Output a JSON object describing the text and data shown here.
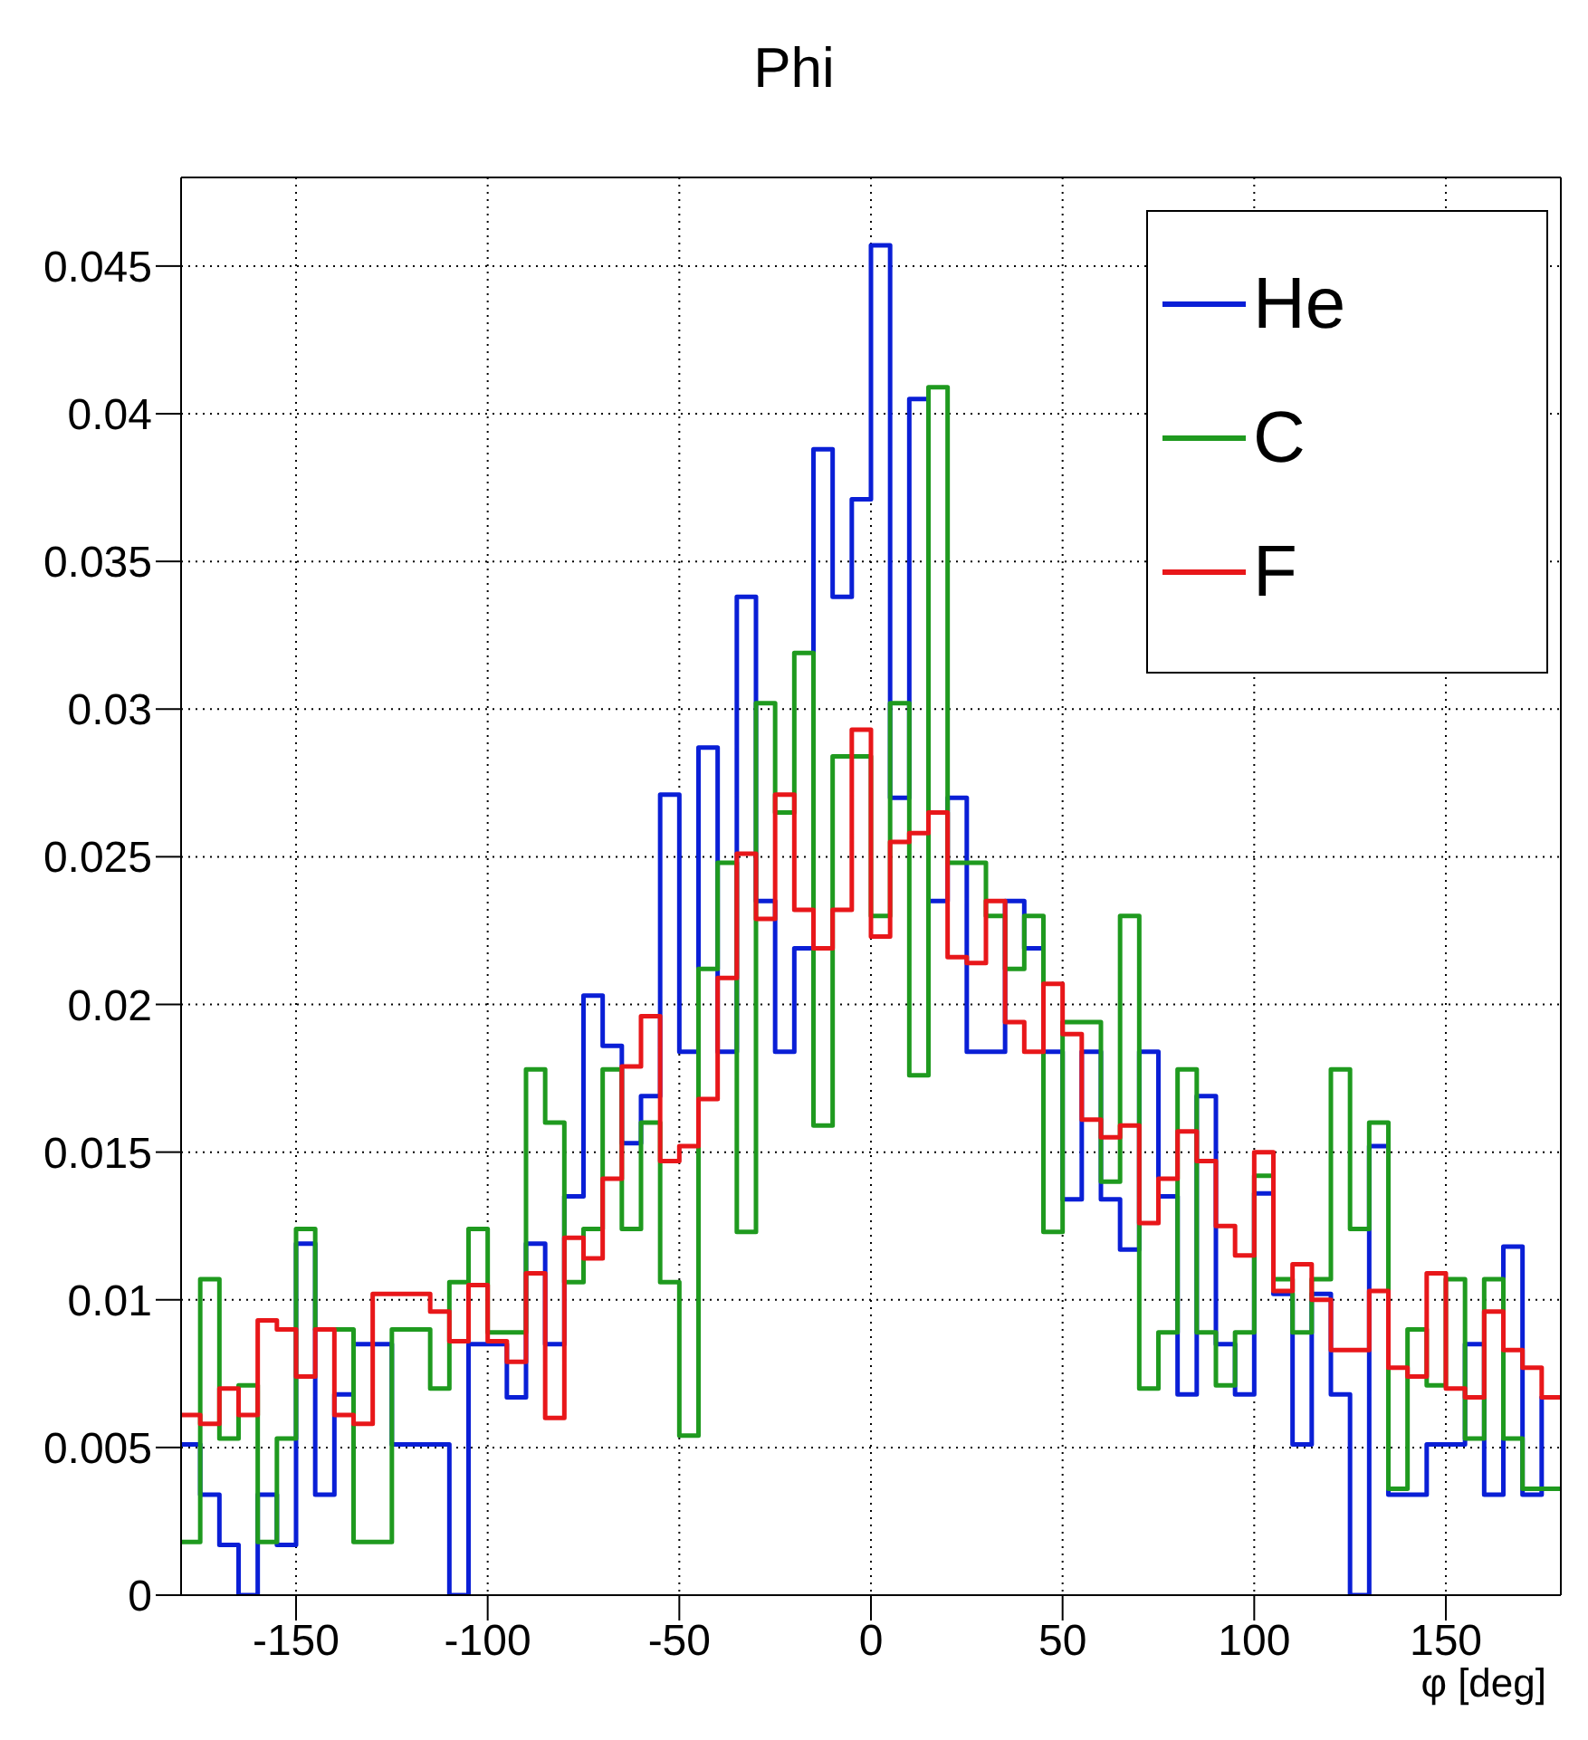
{
  "chart_data": {
    "type": "histogram",
    "title": "Phi",
    "xlabel": "φ [deg]",
    "bins": [
      -180,
      -175,
      -170,
      -165,
      -160,
      -155,
      -150,
      -145,
      -140,
      -135,
      -130,
      -125,
      -120,
      -115,
      -110,
      -105,
      -100,
      -95,
      -90,
      -85,
      -80,
      -75,
      -70,
      -65,
      -60,
      -55,
      -50,
      -45,
      -40,
      -35,
      -30,
      -25,
      -20,
      -15,
      -10,
      -5,
      0,
      5,
      10,
      15,
      20,
      25,
      30,
      35,
      40,
      45,
      50,
      55,
      60,
      65,
      70,
      75,
      80,
      85,
      90,
      95,
      100,
      105,
      110,
      115,
      120,
      125,
      130,
      135,
      140,
      145,
      150,
      155,
      160,
      165,
      170,
      175,
      180
    ],
    "series": [
      {
        "name": "He",
        "color": "#0a1fd6",
        "values": [
          0.0051,
          0.0034,
          0.0017,
          0,
          0.0034,
          0.0017,
          0.0119,
          0.0034,
          0.0068,
          0.0085,
          0.0085,
          0.0051,
          0.0051,
          0.0051,
          0,
          0.0085,
          0.0085,
          0.0067,
          0.0119,
          0.0085,
          0.0135,
          0.0203,
          0.0186,
          0.0153,
          0.0169,
          0.0271,
          0.0184,
          0.0287,
          0.0184,
          0.0338,
          0.0235,
          0.0184,
          0.0219,
          0.0388,
          0.0338,
          0.0371,
          0.0457,
          0.027,
          0.0405,
          0.0235,
          0.027,
          0.0184,
          0.0184,
          0.0235,
          0.0219,
          0.0184,
          0.0134,
          0.0184,
          0.0134,
          0.0117,
          0.0184,
          0.0135,
          0.0068,
          0.0169,
          0.0085,
          0.0068,
          0.0136,
          0.0102,
          0.0051,
          0.0102,
          0.0068,
          0,
          0.0152,
          0.0034,
          0.0034,
          0.0051,
          0.0051,
          0.0085,
          0.0034,
          0.0118,
          0.0034,
          0.0067
        ]
      },
      {
        "name": "C",
        "color": "#1f9a1f",
        "values": [
          0.0018,
          0.0107,
          0.0053,
          0.0071,
          0.0018,
          0.0053,
          0.0124,
          0.009,
          0.009,
          0.0018,
          0.0018,
          0.009,
          0.009,
          0.007,
          0.0106,
          0.0124,
          0.0089,
          0.0089,
          0.0178,
          0.016,
          0.0106,
          0.0124,
          0.0178,
          0.0124,
          0.016,
          0.0106,
          0.0054,
          0.0212,
          0.0248,
          0.0123,
          0.0302,
          0.0265,
          0.0319,
          0.0159,
          0.0284,
          0.0284,
          0.023,
          0.0302,
          0.0176,
          0.0409,
          0.0248,
          0.0248,
          0.023,
          0.0212,
          0.023,
          0.0123,
          0.0194,
          0.0194,
          0.014,
          0.023,
          0.007,
          0.0089,
          0.0178,
          0.0089,
          0.0071,
          0.0089,
          0.0142,
          0.0107,
          0.0089,
          0.0107,
          0.0178,
          0.0124,
          0.016,
          0.0036,
          0.009,
          0.0071,
          0.0107,
          0.0053,
          0.0107,
          0.0053,
          0.0036,
          0.0036
        ]
      },
      {
        "name": "F",
        "color": "#e8171a",
        "values": [
          0.0061,
          0.0058,
          0.007,
          0.0061,
          0.0093,
          0.009,
          0.0074,
          0.009,
          0.0061,
          0.0058,
          0.0102,
          0.0102,
          0.0102,
          0.0096,
          0.0086,
          0.0105,
          0.0086,
          0.0079,
          0.0109,
          0.006,
          0.0121,
          0.0114,
          0.0141,
          0.0179,
          0.0196,
          0.0147,
          0.0152,
          0.0168,
          0.0209,
          0.0251,
          0.0229,
          0.0271,
          0.0232,
          0.0219,
          0.0232,
          0.0293,
          0.0223,
          0.0255,
          0.0258,
          0.0265,
          0.0216,
          0.0214,
          0.0235,
          0.0194,
          0.0184,
          0.0207,
          0.019,
          0.0161,
          0.0155,
          0.0159,
          0.0126,
          0.0141,
          0.0157,
          0.0147,
          0.0125,
          0.0115,
          0.015,
          0.0103,
          0.0112,
          0.01,
          0.0083,
          0.0083,
          0.0103,
          0.0077,
          0.0074,
          0.0109,
          0.007,
          0.0067,
          0.0096,
          0.0083,
          0.0077,
          0.0067
        ]
      }
    ],
    "xlim": [
      -180,
      180
    ],
    "xticks": [
      -150,
      -100,
      -50,
      0,
      50,
      100,
      150
    ],
    "ylim": [
      0,
      0.048
    ],
    "yticks": [
      0,
      0.005,
      0.01,
      0.015,
      0.02,
      0.025,
      0.03,
      0.035,
      0.04,
      0.045
    ],
    "grid": true,
    "legend": "top right"
  }
}
